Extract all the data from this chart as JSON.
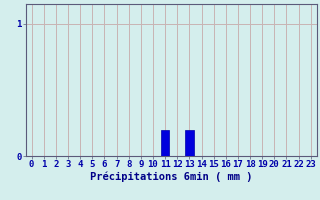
{
  "categories": [
    0,
    1,
    2,
    3,
    4,
    5,
    6,
    7,
    8,
    9,
    10,
    11,
    12,
    13,
    14,
    15,
    16,
    17,
    18,
    19,
    20,
    21,
    22,
    23
  ],
  "values": [
    0,
    0,
    0,
    0,
    0,
    0,
    0,
    0,
    0,
    0,
    0,
    0.2,
    0,
    0.2,
    0,
    0,
    0,
    0,
    0,
    0,
    0,
    0,
    0,
    0
  ],
  "bar_color": "#0000dd",
  "bar_edge_color": "#0000aa",
  "background_color": "#d4eeed",
  "grid_color": "#c8b4b4",
  "axis_color": "#5a5a7a",
  "xlabel": "Précipitations 6min ( mm )",
  "yticks": [
    0,
    1
  ],
  "ylim": [
    0,
    1.15
  ],
  "xlim": [
    -0.5,
    23.5
  ],
  "xlabel_fontsize": 7.5,
  "tick_fontsize": 6.5,
  "tick_color": "#0000aa",
  "label_color": "#000088"
}
